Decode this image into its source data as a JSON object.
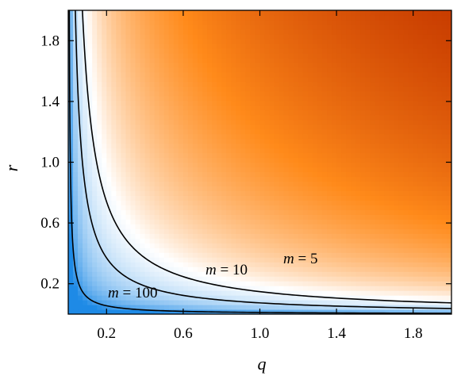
{
  "chart_data": {
    "type": "heatmap",
    "xlabel": "q",
    "ylabel": "r",
    "xlim": [
      0,
      2
    ],
    "ylim": [
      0,
      2
    ],
    "x_ticks": [
      "0.2",
      "0.6",
      "1.0",
      "1.4",
      "1.8"
    ],
    "y_ticks": [
      "0.2",
      "0.6",
      "1.0",
      "1.4",
      "1.8"
    ],
    "colormap": {
      "low": "#1e8ae6",
      "mid": "#ffffff",
      "high": "#c83c00",
      "accent": "#ff8a1a"
    },
    "contours": [
      {
        "m": 100,
        "label_var": "m",
        "label_eq": " = 100",
        "qr_product": 0.011
      },
      {
        "m": 10,
        "label_var": "m",
        "label_eq": " = 10",
        "qr_product": 0.074
      },
      {
        "m": 5,
        "label_var": "m",
        "label_eq": " = 5",
        "qr_product": 0.148
      }
    ]
  }
}
